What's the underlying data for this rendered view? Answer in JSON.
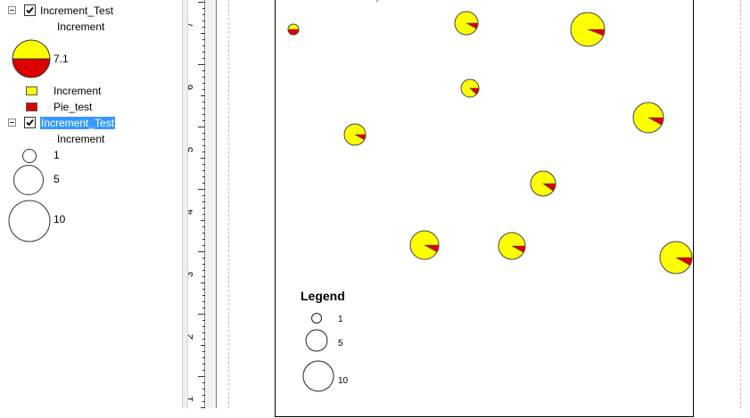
{
  "toc": {
    "layer1": {
      "name": "Increment_Test",
      "field": "Increment",
      "size_label": "7.1",
      "legend_items": [
        {
          "label": "Increment",
          "color": "#ffff00"
        },
        {
          "label": "Pie_test",
          "color": "#dd0000"
        }
      ]
    },
    "layer2": {
      "name": "Increment_Test",
      "field": "Increment",
      "sizes": [
        {
          "label": "1"
        },
        {
          "label": "5"
        },
        {
          "label": "10"
        }
      ]
    }
  },
  "ruler": {
    "labels": [
      "7",
      "6",
      "5",
      "4",
      "3",
      "2",
      "1"
    ]
  },
  "map": {
    "legend_title": "Legend",
    "legend_sizes": [
      {
        "label": "1"
      },
      {
        "label": "5"
      },
      {
        "label": "10"
      }
    ],
    "pie_colors": {
      "increment": "#ffff00",
      "pie_test": "#dd0000"
    },
    "pie_red_share": [
      0.5,
      0.08,
      0.06,
      0.12,
      0.08,
      0.08,
      0.1,
      0.08,
      0.08,
      0.08,
      0.06
    ]
  }
}
